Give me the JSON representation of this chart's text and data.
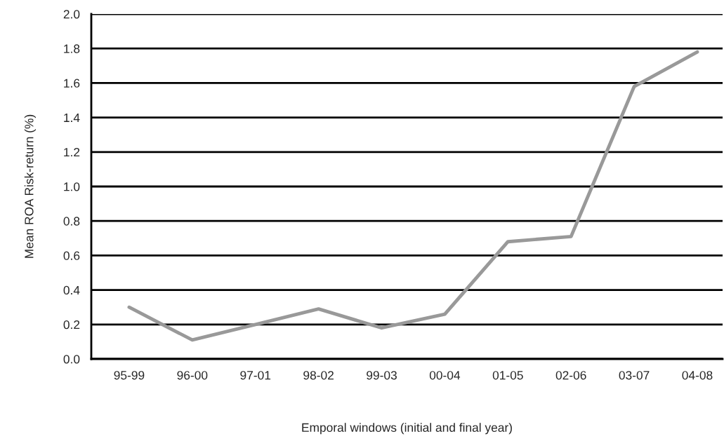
{
  "chart_data": {
    "type": "line",
    "xlabel": "Emporal windows (initial and final year)",
    "ylabel": "Mean ROA Risk-return (%)",
    "categories": [
      "95-99",
      "96-00",
      "97-01",
      "98-02",
      "99-03",
      "00-04",
      "01-05",
      "02-06",
      "03-07",
      "04-08"
    ],
    "series": [
      {
        "color": "#999999",
        "values": [
          0.3,
          0.11,
          0.2,
          0.29,
          0.18,
          0.26,
          0.68,
          0.71,
          1.58,
          1.78
        ]
      }
    ],
    "ylim": [
      0,
      2.0
    ],
    "yticks": [
      {
        "value": 0,
        "label": "0.0"
      },
      {
        "value": 0.2,
        "label": "0.2"
      },
      {
        "value": 0.4,
        "label": "0.4"
      },
      {
        "value": 0.6,
        "label": "0.6"
      },
      {
        "value": 0.8,
        "label": "0.8"
      },
      {
        "value": 1.0,
        "label": "1.0"
      },
      {
        "value": 1.2,
        "label": "1.2"
      },
      {
        "value": 1.4,
        "label": "1.4"
      },
      {
        "value": 1.6,
        "label": "1.6"
      },
      {
        "value": 1.8,
        "label": "1.8"
      },
      {
        "value": 2.0,
        "label": "2.0"
      }
    ],
    "grid": "y",
    "marker": "none",
    "line_style": "solid",
    "legend": false
  }
}
